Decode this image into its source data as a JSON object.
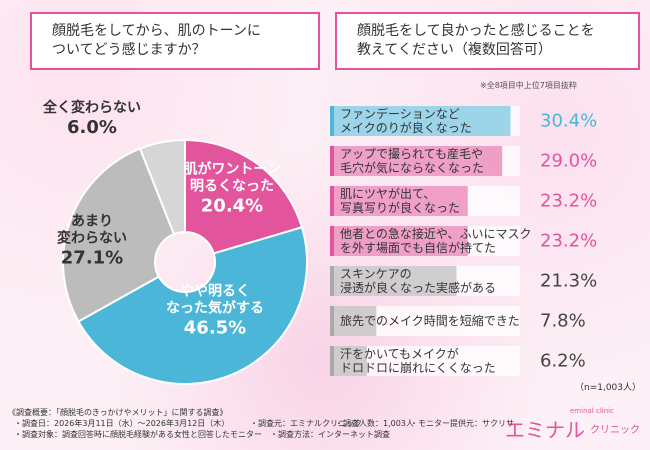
{
  "chart_data": [
    {
      "type": "pie",
      "title": "顔脱毛をしてから、肌のトーンに\nついてどう感じますか？",
      "categories": [
        "肌がワントーン\n明るくなった",
        "やや明るく\nなった気がする",
        "あまり\n変わらない",
        "全く変わらない"
      ],
      "values": [
        20.4,
        46.5,
        27.1,
        6.0
      ],
      "value_labels": [
        "20.4%",
        "46.5%",
        "27.1%",
        "6.0%"
      ],
      "colors": [
        "#e2559c",
        "#4bb6d8",
        "#bcbcbc",
        "#d6d6d6"
      ]
    },
    {
      "type": "bar",
      "title": "顔脱毛をして良かったと感じることを\n教えてください（複数回答可）",
      "note": "※全8項目中上位7項目抜粋",
      "categories": [
        "ファンデーションなど\nメイクのりが良くなった",
        "アップで撮られても産毛や\n毛穴が気にならなくなった",
        "肌にツヤが出て、\n写真写りが良くなった",
        "他者との急な接近や、ふいにマスク\nを外す場面でも自信が持てた",
        "スキンケアの\n浸透が良くなった実感がある",
        "旅先でのメイク時間を短縮できた",
        "汗をかいてもメイクが\nドロドロに崩れにくくなった"
      ],
      "values": [
        30.4,
        29.0,
        23.2,
        23.2,
        21.3,
        7.8,
        6.2
      ],
      "value_labels": [
        "30.4%",
        "29.0%",
        "23.2%",
        "23.2%",
        "21.3%",
        "7.8%",
        "6.2%"
      ],
      "colors": [
        "#4bb6d8",
        "#e2559c",
        "#e2559c",
        "#e2559c",
        "#a9a9a9",
        "#a9a9a9",
        "#a9a9a9"
      ],
      "xlim": [
        0,
        32
      ],
      "sample": "（n=1,003人）"
    }
  ],
  "footer": [
    "《調査概要：「顔脱毛のきっかけやメリット」に関する調査》",
    "・調査日：2026年3月11日（水）～2026年3月12日（木）",
    "・調査元：エミナルクリニック",
    "・調査人数：1,003人",
    "・モニター提供元：サクリサ",
    "・調査対象：調査回答時に顔脱毛経験がある女性と回答したモニター",
    "・調査方法：インターネット調査"
  ],
  "logo": {
    "sub": "eminal clinic",
    "main": "エミナル",
    "tail": "クリニック"
  }
}
